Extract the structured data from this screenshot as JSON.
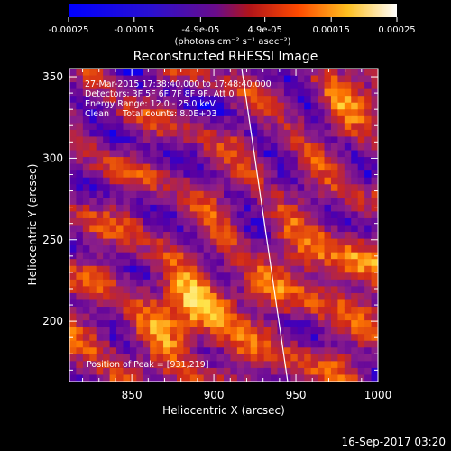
{
  "chart_data": {
    "type": "heatmap",
    "title": "Reconstructed RHESSI Image",
    "xlabel": "Heliocentric X (arcsec)",
    "ylabel": "Heliocentric Y (arcsec)",
    "xlim": [
      812,
      1000
    ],
    "ylim": [
      163,
      355
    ],
    "x_ticks": [
      "850",
      "900",
      "950",
      "1000"
    ],
    "x_tick_values": [
      850,
      900,
      950,
      1000
    ],
    "y_ticks": [
      "200",
      "250",
      "300",
      "350"
    ],
    "y_tick_values": [
      200,
      250,
      300,
      350
    ],
    "colorbar": {
      "min": -0.00025,
      "max": 0.00025,
      "ticks": [
        "-0.00025",
        "-0.00015",
        "-4.9e-05",
        "4.9e-05",
        "0.00015",
        "0.00025"
      ],
      "tick_values": [
        -0.00025,
        -0.00015,
        -4.9e-05,
        4.9e-05,
        0.00015,
        0.00025
      ],
      "unit_label": "(photons cm⁻² s⁻¹ asec⁻²)",
      "colormap": [
        "#0000ff",
        "#5a00a0",
        "#8a1e8a",
        "#d02818",
        "#ff7a00",
        "#ffe040",
        "#ffffff"
      ]
    },
    "annotations": [
      "27-Mar-2015 17:38:40.000 to 17:48:40.000",
      "Detectors: 3F 5F 6F 7F 8F 9F, Att 0",
      "Energy Range: 12.0 - 25.0 keV",
      "Clean     Total counts: 8.0E+03"
    ],
    "peak_label": "Position of Peak = [931,219]",
    "peak": [
      931,
      219
    ],
    "limb_line": [
      [
        917,
        355
      ],
      [
        945,
        163
      ]
    ],
    "grid": false
  },
  "footer": {
    "timestamp": "16-Sep-2017 03:20"
  },
  "colors": {
    "background": "#000000",
    "axes": "#ffffff",
    "limb": "#ffffff"
  }
}
